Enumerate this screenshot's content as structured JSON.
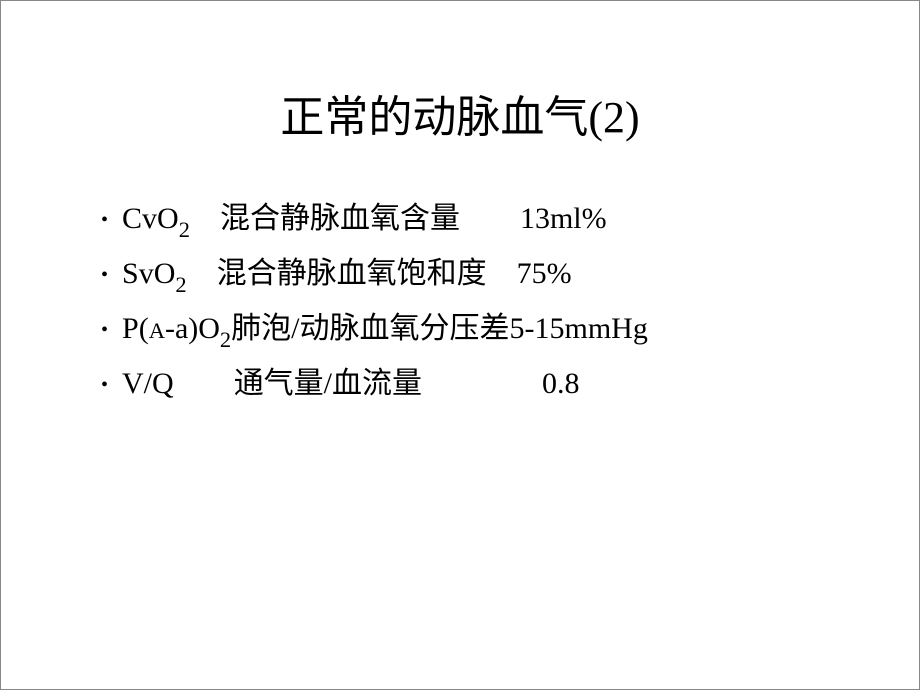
{
  "slide": {
    "title": "正常的动脉血气(2)",
    "title_fontsize": 44,
    "body_fontsize": 30,
    "background_color": "#ffffff",
    "text_color": "#000000",
    "border_color": "#888888",
    "items": [
      {
        "symbol_prefix": "CvO",
        "symbol_sub": "2",
        "spacing1": " ",
        "description": "混合静脉血氧含量",
        "spacing2": "  ",
        "value": "13ml%"
      },
      {
        "symbol_prefix": "SvO",
        "symbol_sub": "2",
        "spacing1": " ",
        "description": "混合静脉血氧饱和度",
        "spacing2": " ",
        "value": "75%"
      },
      {
        "symbol_prefix": "P(",
        "symbol_small": "A",
        "symbol_mid": "-a)O",
        "symbol_sub": "2",
        "spacing1": "",
        "description": "肺泡/动脉血氧分压差",
        "spacing2": "",
        "value": "5-15mmHg"
      },
      {
        "symbol_prefix": "V/Q",
        "symbol_sub": "",
        "spacing1": "  ",
        "description": "通气量/血流量",
        "spacing2": "    ",
        "value": "0.8"
      }
    ]
  }
}
